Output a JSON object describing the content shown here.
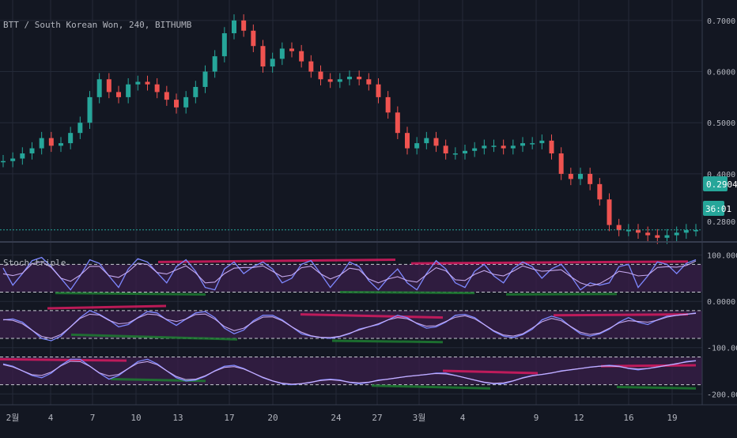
{
  "symbol_title": "BTT / South Korean Won, 240, BITHUMB",
  "indicator_title": "Stoch-triple",
  "last_price_label": "0.2904",
  "countdown_label": "36:01",
  "hidden_price_label": "0.2800",
  "colors": {
    "background": "#131722",
    "grid": "#242a38",
    "up": "#26a69a",
    "down": "#ef5350",
    "axis_text": "#b2b5be",
    "badge": "#26a69a",
    "k_line": "#7e88ff",
    "d_line": "#d5b7ff",
    "band_fill": "#3a1f4a",
    "red_trend": "#d81b60",
    "green_trend": "#1e7d32"
  },
  "chart_data": [
    {
      "type": "line",
      "title": "BTT / South Korean Won, 240, BITHUMB",
      "note": "candlestick price series",
      "x_ticks": [
        "2월",
        "4",
        "7",
        "10",
        "13",
        "17",
        "20",
        "24",
        "27",
        "3월",
        "4",
        "9",
        "12",
        "16",
        "19"
      ],
      "y_ticks": [
        "0.7000",
        "0.6000",
        "0.5000",
        "0.4000",
        "0.2904"
      ],
      "ylim": [
        0.27,
        0.74
      ],
      "last_price": 0.2904,
      "series": [
        {
          "values": [
            0.425,
            0.43,
            0.44,
            0.45,
            0.47,
            0.455,
            0.46,
            0.48,
            0.5,
            0.55,
            0.585,
            0.56,
            0.55,
            0.575,
            0.58,
            0.575,
            0.56,
            0.545,
            0.53,
            0.55,
            0.57,
            0.6,
            0.63,
            0.675,
            0.7,
            0.68,
            0.65,
            0.61,
            0.625,
            0.645,
            0.64,
            0.62,
            0.6,
            0.585,
            0.58,
            0.585,
            0.59,
            0.585,
            0.575,
            0.55,
            0.52,
            0.48,
            0.45,
            0.46,
            0.47,
            0.455,
            0.44,
            0.44,
            0.445,
            0.45,
            0.455,
            0.455,
            0.45,
            0.455,
            0.46,
            0.46,
            0.465,
            0.44,
            0.4,
            0.39,
            0.4,
            0.38,
            0.35,
            0.3,
            0.29,
            0.29,
            0.285,
            0.28,
            0.275,
            0.28,
            0.285,
            0.29,
            0.29
          ]
        }
      ]
    },
    {
      "type": "line",
      "title": "Stoch-triple",
      "y_ticks": [
        "100.0000",
        "0.0000",
        "-100.0000",
        "-200.0000"
      ],
      "ylim": [
        -220,
        125
      ],
      "bands": [
        [
          80,
          20
        ],
        [
          -20,
          -80
        ],
        [
          -120,
          -180
        ]
      ],
      "series": [
        {
          "name": "",
          "values": [
            72,
            35,
            60,
            88,
            95,
            75,
            50,
            25,
            55,
            90,
            82,
            55,
            30,
            70,
            92,
            85,
            62,
            40,
            75,
            90,
            65,
            30,
            25,
            70,
            85,
            60,
            75,
            85,
            70,
            40,
            50,
            80,
            88,
            60,
            30,
            55,
            85,
            75,
            45,
            25,
            50,
            70,
            40,
            25,
            60,
            88,
            70,
            40,
            30,
            65,
            80,
            55,
            40,
            70,
            85,
            75,
            50,
            70,
            80,
            55,
            25,
            40,
            35,
            40,
            75,
            80,
            30,
            55,
            85,
            80,
            60,
            82,
            90
          ]
        },
        {
          "name": "",
          "values": [
            -40,
            -38,
            -45,
            -62,
            -80,
            -85,
            -75,
            -55,
            -35,
            -20,
            -28,
            -40,
            -55,
            -50,
            -35,
            -22,
            -25,
            -40,
            -52,
            -38,
            -25,
            -22,
            -35,
            -58,
            -70,
            -62,
            -42,
            -30,
            -30,
            -40,
            -55,
            -70,
            -75,
            -78,
            -80,
            -76,
            -70,
            -60,
            -55,
            -50,
            -40,
            -30,
            -35,
            -48,
            -58,
            -55,
            -45,
            -30,
            -28,
            -35,
            -50,
            -65,
            -75,
            -78,
            -72,
            -60,
            -40,
            -32,
            -38,
            -55,
            -70,
            -75,
            -70,
            -60,
            -45,
            -35,
            -45,
            -50,
            -40,
            -32,
            -30,
            -28,
            -25
          ]
        },
        {
          "name": "",
          "values": [
            -135,
            -140,
            -150,
            -160,
            -165,
            -155,
            -138,
            -125,
            -125,
            -140,
            -155,
            -168,
            -160,
            -145,
            -130,
            -125,
            -135,
            -150,
            -165,
            -172,
            -170,
            -162,
            -150,
            -140,
            -138,
            -145,
            -155,
            -165,
            -172,
            -178,
            -180,
            -178,
            -175,
            -170,
            -168,
            -170,
            -175,
            -178,
            -175,
            -170,
            -168,
            -165,
            -162,
            -160,
            -158,
            -155,
            -155,
            -160,
            -165,
            -170,
            -175,
            -178,
            -178,
            -172,
            -165,
            -160,
            -158,
            -155,
            -150,
            -148,
            -145,
            -142,
            -140,
            -138,
            -140,
            -145,
            -148,
            -145,
            -142,
            -138,
            -135,
            -130,
            -128
          ]
        }
      ]
    }
  ]
}
